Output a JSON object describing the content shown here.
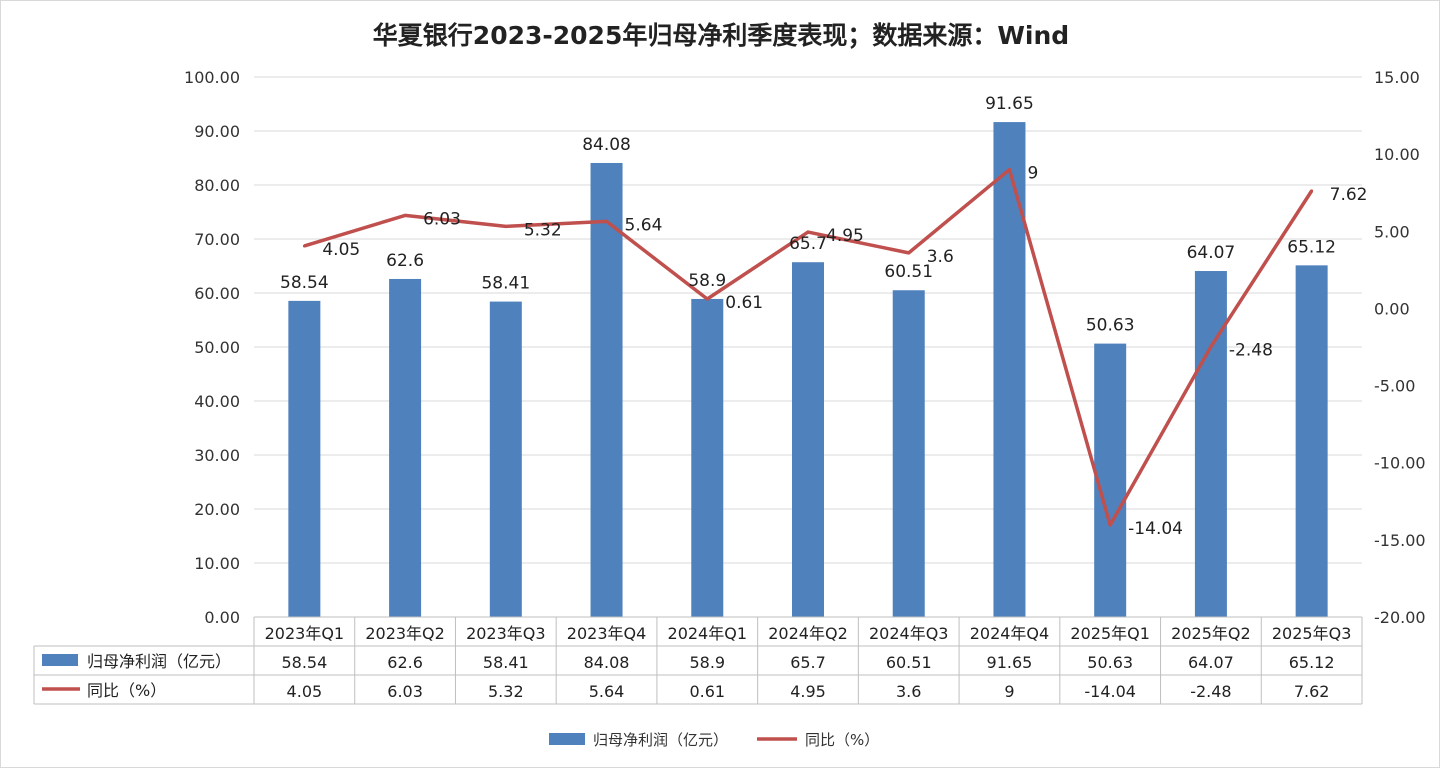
{
  "chart_data": {
    "type": "bar",
    "title": "华夏银行2023-2025年归母净利季度表现；数据来源：Wind",
    "categories": [
      "2023年Q1",
      "2023年Q2",
      "2023年Q3",
      "2023年Q4",
      "2024年Q1",
      "2024年Q2",
      "2024年Q3",
      "2024年Q4",
      "2025年Q1",
      "2025年Q2",
      "2025年Q3"
    ],
    "series": [
      {
        "name": "归母净利润（亿元）",
        "type": "bar",
        "axis": "left",
        "color": "#4f81bd",
        "values": [
          58.54,
          62.6,
          58.41,
          84.08,
          58.9,
          65.7,
          60.51,
          91.65,
          50.63,
          64.07,
          65.12
        ]
      },
      {
        "name": "同比（%）",
        "type": "line",
        "axis": "right",
        "color": "#c0504d",
        "values": [
          4.05,
          6.03,
          5.32,
          5.64,
          0.61,
          4.95,
          3.6,
          9,
          -14.04,
          -2.48,
          7.62
        ]
      }
    ],
    "y_left": {
      "min": 0,
      "max": 100,
      "step": 10,
      "ticks": [
        "0.00",
        "10.00",
        "20.00",
        "30.00",
        "40.00",
        "50.00",
        "60.00",
        "70.00",
        "80.00",
        "90.00",
        "100.00"
      ]
    },
    "y_right": {
      "min": -20,
      "max": 15,
      "step": 5,
      "ticks": [
        "-20.00",
        "-15.00",
        "-10.00",
        "-5.00",
        "0.00",
        "5.00",
        "10.00",
        "15.00"
      ]
    },
    "data_table": true,
    "legend_position": "bottom"
  }
}
